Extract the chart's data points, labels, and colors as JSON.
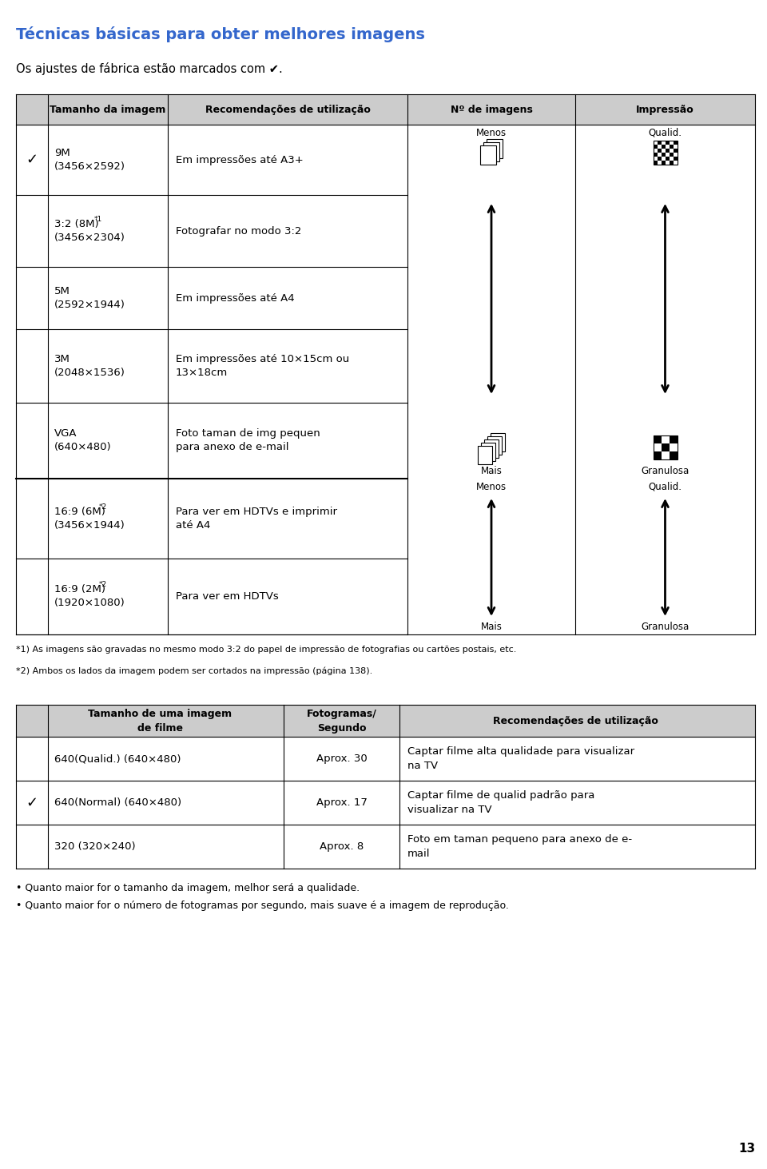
{
  "title": "Técnicas básicas para obter melhores imagens",
  "title_color": "#3366cc",
  "subtitle": "Os ajustes de fábrica estão marcados com ✔.",
  "bg_color": "#ffffff",
  "table1_col_labels": [
    "",
    "Tamanho da imagem",
    "Recomendações de utilização",
    "Nº de imagens",
    "Impressão"
  ],
  "table1_rows": [
    {
      "check": true,
      "size1": "9M",
      "size2": "(3456×2592)",
      "sup": "",
      "rec1": "Em impressões até A3+",
      "rec2": ""
    },
    {
      "check": false,
      "size1": "3:2 (8M)",
      "size2": "(3456×2304)",
      "sup": "*1",
      "rec1": "Fotografar no modo 3:2",
      "rec2": ""
    },
    {
      "check": false,
      "size1": "5M",
      "size2": "(2592×1944)",
      "sup": "",
      "rec1": "Em impressões até A4",
      "rec2": ""
    },
    {
      "check": false,
      "size1": "3M",
      "size2": "(2048×1536)",
      "sup": "",
      "rec1": "Em impressões até 10×15cm ou",
      "rec2": "13×18cm"
    },
    {
      "check": false,
      "size1": "VGA",
      "size2": "(640×480)",
      "sup": "",
      "rec1": "Foto taman de img pequen",
      "rec2": "para anexo de e-mail"
    },
    {
      "check": false,
      "size1": "16:9 (6M)",
      "size2": "(3456×1944)",
      "sup": "*2",
      "rec1": "Para ver em HDTVs e imprimir",
      "rec2": "até A4"
    },
    {
      "check": false,
      "size1": "16:9 (2M)",
      "size2": "(1920×1080)",
      "sup": "*2",
      "rec1": "Para ver em HDTVs",
      "rec2": ""
    }
  ],
  "footnote1": "*1) As imagens são gravadas no mesmo modo 3:2 do papel de impressão de fotografias ou cartões postais, etc.",
  "footnote2": "*2) Ambos os lados da imagem podem ser cortados na impressão (página 138).",
  "table2_col_labels": [
    "Tamanho de uma imagem\nde filme",
    "Fotogramas/\nSegundo",
    "Recomendações de utilização"
  ],
  "table2_rows": [
    {
      "check": false,
      "size": "640(Qualid.) (640×480)",
      "fps": "Aprox. 30",
      "rec1": "Captar filme alta qualidade para visualizar",
      "rec2": "na TV"
    },
    {
      "check": true,
      "size": "640(Normal) (640×480)",
      "fps": "Aprox. 17",
      "rec1": "Captar filme de qualid padrão para",
      "rec2": "visualizar na TV"
    },
    {
      "check": false,
      "size": "320 (320×240)",
      "fps": "Aprox. 8",
      "rec1": "Foto em taman pequeno para anexo de e-",
      "rec2": "mail"
    }
  ],
  "bullet1": "• Quanto maior for o tamanho da imagem, melhor será a qualidade.",
  "bullet2": "• Quanto maior for o número de fotogramas por segundo, mais suave é a imagem de reprodução.",
  "page_num": "13"
}
